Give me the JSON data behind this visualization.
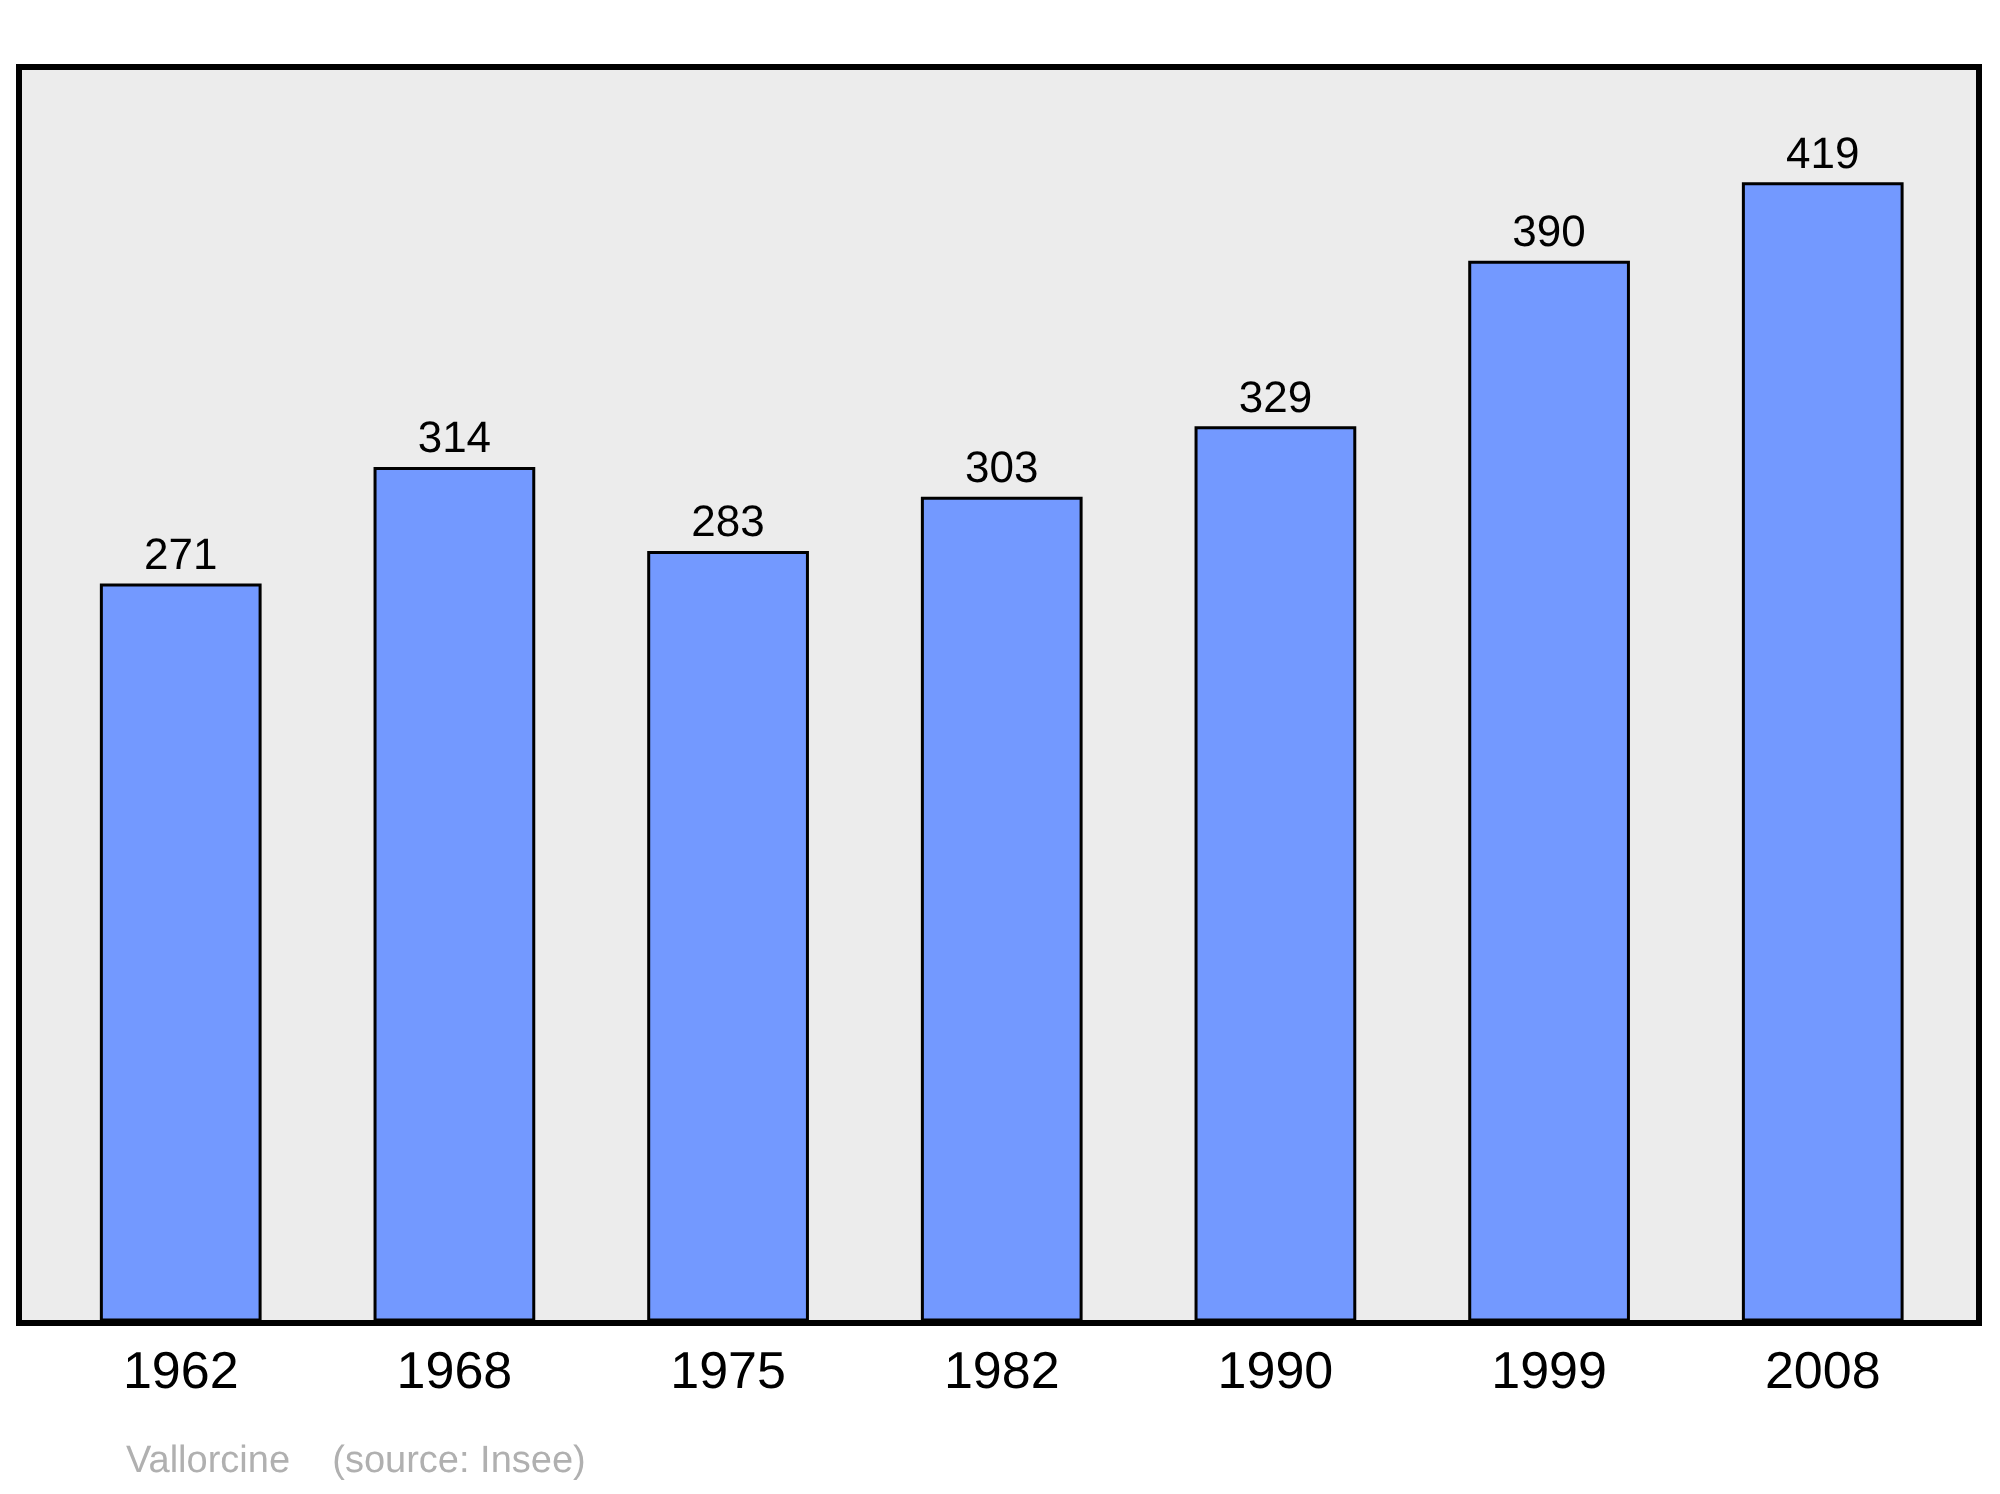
{
  "chart_data": {
    "type": "bar",
    "categories": [
      "1962",
      "1968",
      "1975",
      "1982",
      "1990",
      "1999",
      "2008"
    ],
    "values": [
      271,
      314,
      283,
      303,
      329,
      390,
      419
    ],
    "color": "#7399ff",
    "data_labels": true,
    "annotations": [
      "Vallorcine    (source: Insee)"
    ]
  }
}
